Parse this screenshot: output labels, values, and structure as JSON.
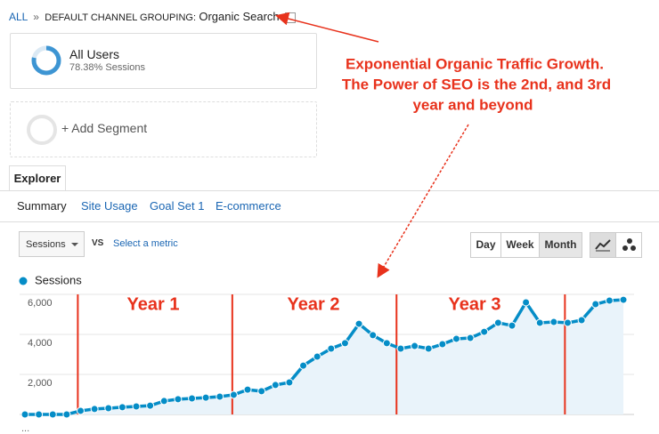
{
  "header": {
    "all": "ALL",
    "separator": "»",
    "grouping": "DEFAULT CHANNEL GROUPING:",
    "value": "Organic Search"
  },
  "segments": {
    "name": "All Users",
    "detail": "78.38% Sessions",
    "add": "+ Add Segment"
  },
  "tab": "Explorer",
  "subtabs": [
    "Summary",
    "Site Usage",
    "Goal Set 1",
    "E-commerce"
  ],
  "controls": {
    "metric": "Sessions",
    "vs": "VS",
    "select": "Select a metric",
    "periods": [
      "Day",
      "Week",
      "Month"
    ]
  },
  "annotation": [
    "Exponential Organic Traffic Growth.",
    "The Power of SEO is the 2nd, and 3rd",
    "year and beyond"
  ],
  "year_labels": [
    "Year 1",
    "Year 2",
    "Year 3"
  ],
  "more": "...",
  "chart_data": {
    "type": "line",
    "series": [
      {
        "name": "Sessions",
        "color": "#058dc7",
        "values": [
          0,
          0,
          0,
          0,
          180,
          270,
          310,
          360,
          400,
          440,
          670,
          760,
          800,
          840,
          890,
          980,
          1240,
          1160,
          1470,
          1600,
          2440,
          2890,
          3290,
          3560,
          4530,
          3960,
          3560,
          3290,
          3420,
          3290,
          3510,
          3780,
          3820,
          4130,
          4580,
          4440,
          5600,
          4580,
          4620,
          4580,
          4710,
          5510,
          5690,
          5730
        ]
      }
    ],
    "ylim": [
      0,
      6000
    ],
    "yticks": [
      {
        "value": 2000,
        "label": "2,000"
      },
      {
        "value": 4000,
        "label": "4,000"
      },
      {
        "value": 6000,
        "label": "6,000"
      }
    ],
    "grid": true
  }
}
